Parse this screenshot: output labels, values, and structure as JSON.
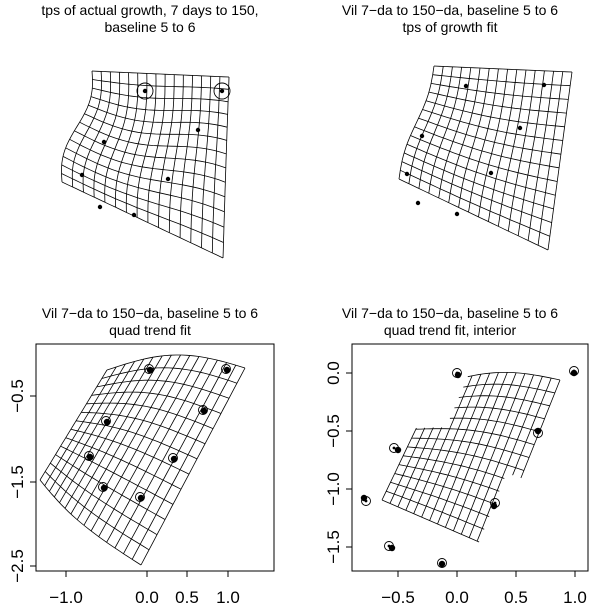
{
  "panels": [
    {
      "line1": "tps of actual growth, 7 days to 150,",
      "line2": "baseline 5  to  6"
    },
    {
      "line1": "Vil 7−da to 150−da, baseline 5  to  6",
      "line2": "tps of growth fit"
    },
    {
      "line1": "Vil 7−da to 150−da, baseline 5  to  6",
      "line2": "quad trend fit"
    },
    {
      "line1": "Vil 7−da to 150−da, baseline 5  to  6",
      "line2": "quad trend fit, interior"
    }
  ],
  "axes": {
    "panel3_x": [
      "−1.0",
      "0.0",
      "0.5",
      "1.0"
    ],
    "panel3_y": [
      "−0.5",
      "−1.5",
      "−2.5"
    ],
    "panel4_x": [
      "−0.5",
      "0.0",
      "0.5",
      "1.0"
    ],
    "panel4_y": [
      "0.0",
      "−0.5",
      "−1.0",
      "−1.5"
    ]
  }
}
